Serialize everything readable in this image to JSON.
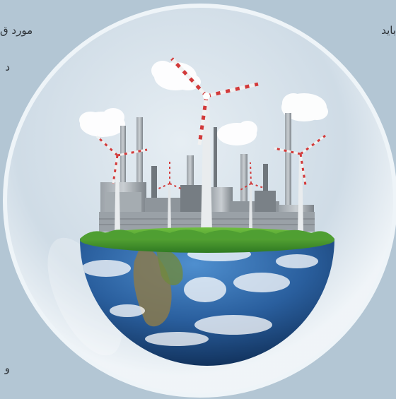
{
  "page": {
    "background": "#b3c6d4",
    "text_fragments": {
      "left_line_1": "مورد ق",
      "left_line_2": "د",
      "left_line_3": "و",
      "right_line_1": "باید"
    }
  },
  "illustration": {
    "subject": "earth-globe-with-industry-and-wind-turbines",
    "colors": {
      "bubble": "#dfe8ef",
      "grass": "#3f8f2c",
      "ocean": "#2a5f9e",
      "cloud": "#ffffff",
      "blade_stripe": "#d23a3a",
      "factory": "#8e959b"
    }
  }
}
